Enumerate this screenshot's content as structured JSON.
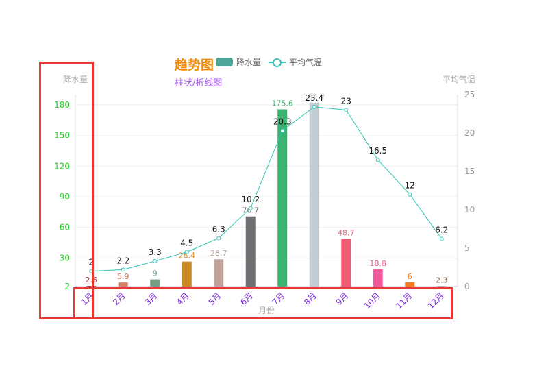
{
  "chart_data": {
    "type": "bar+line",
    "title": "趋势图",
    "subtitle": "柱状/折线图",
    "xlabel": "月份",
    "categories": [
      "1月",
      "2月",
      "3月",
      "4月",
      "5月",
      "6月",
      "7月",
      "8月",
      "9月",
      "10月",
      "11月",
      "12月"
    ],
    "y_left": {
      "label": "降水量",
      "ticks": [
        "2",
        "30",
        "60",
        "90",
        "120",
        "150",
        "180"
      ],
      "range": [
        2,
        190
      ]
    },
    "y_right": {
      "label": "平均气温",
      "ticks": [
        "0",
        "5",
        "10",
        "15",
        "20",
        "25"
      ],
      "range": [
        0,
        25
      ]
    },
    "series": [
      {
        "name": "降水量",
        "type": "bar",
        "values": [
          2.6,
          5.9,
          9,
          26.4,
          28.7,
          70.7,
          175.6,
          182.2,
          48.7,
          18.8,
          6,
          2.3
        ],
        "labels": [
          "2.6",
          "5.9",
          "9",
          "26.4",
          "28.7",
          "70.7",
          "175.6",
          "182.2",
          "48.7",
          "18.8",
          "6",
          "2.3"
        ],
        "colors": [
          "#c23531",
          "#d48265",
          "#749f83",
          "#ca8622",
          "#bda29a",
          "#6e7074",
          "#3cb371",
          "#c4ccd3",
          "#f05b72",
          "#ef5b9c",
          "#f47920",
          "#905a3d"
        ]
      },
      {
        "name": "平均气温",
        "type": "line",
        "values": [
          2,
          2.2,
          3.3,
          4.5,
          6.3,
          10.2,
          20.3,
          23.4,
          23,
          16.5,
          12,
          6.2
        ],
        "labels": [
          "2",
          "2.2",
          "3.3",
          "4.5",
          "6.3",
          "10.2",
          "20.3",
          "23.4",
          "23",
          "16.5",
          "12",
          "6.2"
        ]
      }
    ],
    "colors": {
      "title": "#f08c0a",
      "subtitle": "#a855f7",
      "y_left_ticks": "#22cc22",
      "x_ticks": "#7d2ad8",
      "axis_name": "#aaaaaa",
      "line": "#2ec4b6",
      "legend_bar": "#4ea397",
      "annotation": "#e53935"
    },
    "grid": true,
    "legend": "top-center"
  }
}
